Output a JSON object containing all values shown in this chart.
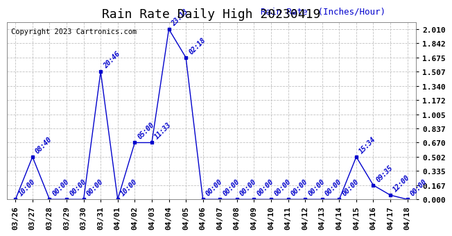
{
  "title": "Rain Rate Daily High 20230419",
  "copyright": "Copyright 2023 Cartronics.com",
  "ylabel": "Rain Rate  (Inches/Hour)",
  "bg_color": "#ffffff",
  "line_color": "#0000cc",
  "text_color": "#0000cc",
  "copyright_color": "#000000",
  "grid_color": "#bbbbbb",
  "x_labels": [
    "03/26",
    "03/27",
    "03/28",
    "03/29",
    "03/30",
    "03/31",
    "04/01",
    "04/02",
    "04/03",
    "04/04",
    "04/05",
    "04/06",
    "04/07",
    "04/08",
    "04/09",
    "04/10",
    "04/11",
    "04/12",
    "04/13",
    "04/14",
    "04/15",
    "04/16",
    "04/17",
    "04/18"
  ],
  "y_values": [
    0.0,
    0.502,
    0.0,
    0.0,
    0.0,
    1.507,
    0.0,
    0.67,
    0.67,
    2.01,
    1.675,
    0.0,
    0.0,
    0.0,
    0.0,
    0.0,
    0.0,
    0.0,
    0.0,
    0.0,
    0.502,
    0.167,
    0.05,
    0.0
  ],
  "point_labels": [
    "10:00",
    "08:40",
    "00:00",
    "00:00",
    "00:00",
    "20:46",
    "10:00",
    "05:00",
    "11:33",
    "23:13",
    "02:18",
    "00:00",
    "00:00",
    "00:00",
    "00:00",
    "00:00",
    "00:00",
    "00:00",
    "00:00",
    "00:00",
    "15:34",
    "09:35",
    "12:00",
    "00:00"
  ],
  "yticks": [
    0.0,
    0.167,
    0.335,
    0.502,
    0.67,
    0.837,
    1.005,
    1.172,
    1.34,
    1.507,
    1.675,
    1.842,
    2.01
  ],
  "ylim_max": 2.09,
  "title_fontsize": 13,
  "copyright_fontsize": 7.5,
  "ylabel_fontsize": 9,
  "tick_fontsize": 8,
  "point_label_fontsize": 7
}
